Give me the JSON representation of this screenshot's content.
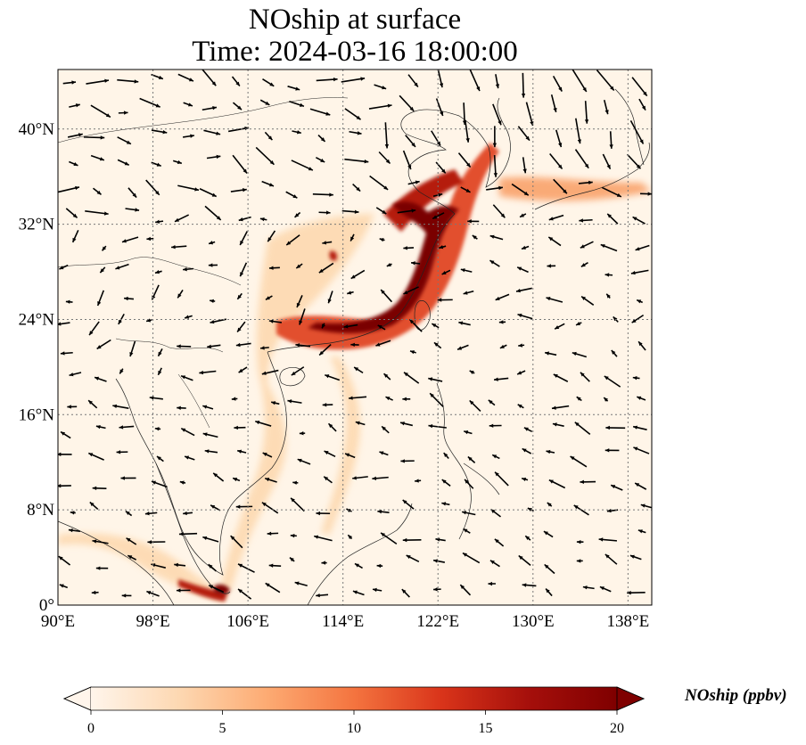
{
  "title_line1": "NOship at surface",
  "title_line2": "Time: 2024-03-16 18:00:00",
  "map": {
    "lon_range": [
      90,
      140
    ],
    "lat_range": [
      0,
      45
    ],
    "lon_ticks": [
      {
        "value": 90,
        "label": "90°E"
      },
      {
        "value": 98,
        "label": "98°E"
      },
      {
        "value": 106,
        "label": "106°E"
      },
      {
        "value": 114,
        "label": "114°E"
      },
      {
        "value": 122,
        "label": "122°E"
      },
      {
        "value": 130,
        "label": "130°E"
      },
      {
        "value": 138,
        "label": "138°E"
      }
    ],
    "lat_ticks": [
      {
        "value": 0,
        "label": "0°"
      },
      {
        "value": 8,
        "label": "8°N"
      },
      {
        "value": 16,
        "label": "16°N"
      },
      {
        "value": 24,
        "label": "24°N"
      },
      {
        "value": 32,
        "label": "32°N"
      },
      {
        "value": 40,
        "label": "40°N"
      }
    ],
    "background_color": "#fff5e8",
    "plume_colors": [
      "#fdd9b0",
      "#f9a26b",
      "#e2502f",
      "#b51a0e",
      "#7a0000"
    ]
  },
  "colorbar": {
    "label": "NOship (ppbv)",
    "min": 0,
    "max": 20,
    "extend": "both",
    "ticks": [
      {
        "value": 0,
        "label": "0"
      },
      {
        "value": 5,
        "label": "5"
      },
      {
        "value": 10,
        "label": "10"
      },
      {
        "value": 15,
        "label": "15"
      },
      {
        "value": 20,
        "label": "20"
      }
    ],
    "colors": [
      "#fff5eb",
      "#fdd8b2",
      "#fdab73",
      "#f4743f",
      "#d9341a",
      "#a50f0b",
      "#7f0000"
    ]
  }
}
